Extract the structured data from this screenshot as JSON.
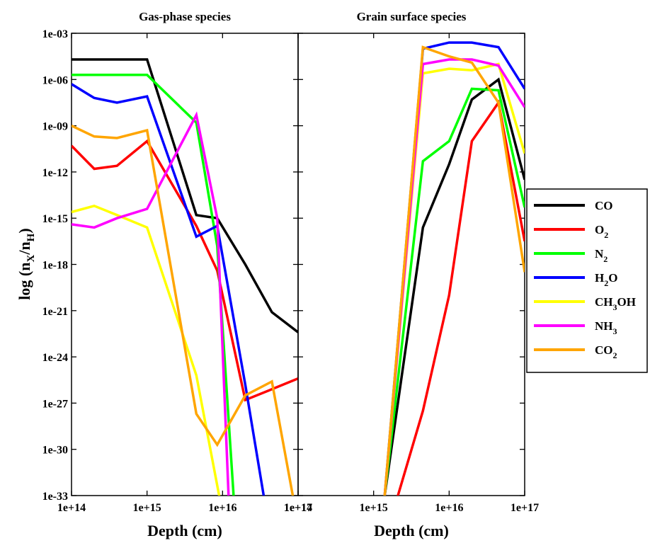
{
  "chart_data": [
    {
      "type": "line",
      "title": "Gas-phase species",
      "xlabel": "Depth (cm)",
      "ylabel_main": "log (n",
      "ylabel_sub_x": "X",
      "ylabel_sep": "/n",
      "ylabel_sub_h": "H",
      "ylabel_close": ")",
      "x_scale": "log",
      "y_scale": "log",
      "xlim": [
        100000000000000.0,
        1e+17
      ],
      "ylim_exp": [
        -33,
        -3
      ],
      "x_ticks": [
        100000000000000.0,
        1000000000000000.0,
        1e+16,
        1e+17
      ],
      "x_tick_labels": [
        "1e+14",
        "1e+15",
        "1e+16",
        "1e+17"
      ],
      "y_ticks_exp": [
        -3,
        -6,
        -9,
        -12,
        -15,
        -18,
        -21,
        -24,
        -27,
        -30,
        -33
      ],
      "y_tick_labels": [
        "1e-03",
        "1e-06",
        "1e-09",
        "1e-12",
        "1e-15",
        "1e-18",
        "1e-21",
        "1e-24",
        "1e-27",
        "1e-30",
        "1e-33"
      ],
      "series": [
        {
          "name": "CO",
          "color": "#000000",
          "x": [
            100000000000000.0,
            200000000000000.0,
            400000000000000.0,
            1000000000000000.0,
            4500000000000000.0,
            8500000000000000.0,
            2e+16,
            4.5e+16,
            1e+17
          ],
          "log10y": [
            -4.7,
            -4.7,
            -4.7,
            -4.7,
            -14.8,
            -15.0,
            -18.0,
            -21.1,
            -22.4
          ]
        },
        {
          "name": "O2",
          "color": "#ff0000",
          "x": [
            100000000000000.0,
            200000000000000.0,
            400000000000000.0,
            1000000000000000.0,
            4500000000000000.0,
            8500000000000000.0,
            2e+16,
            4.5e+16,
            1e+17
          ],
          "log10y": [
            -10.3,
            -11.8,
            -11.6,
            -10.0,
            -15.5,
            -18.4,
            -26.8,
            -26.1,
            -25.4
          ]
        },
        {
          "name": "N2",
          "color": "#00ff00",
          "x": [
            100000000000000.0,
            200000000000000.0,
            400000000000000.0,
            1000000000000000.0,
            4500000000000000.0,
            8500000000000000.0,
            1.4e+16,
            1.5e+16
          ],
          "log10y": [
            -5.7,
            -5.7,
            -5.7,
            -5.7,
            -8.8,
            -16.8,
            -33.0,
            -34.0
          ]
        },
        {
          "name": "H2O",
          "color": "#0000ff",
          "x": [
            100000000000000.0,
            200000000000000.0,
            400000000000000.0,
            1000000000000000.0,
            4500000000000000.0,
            8500000000000000.0,
            2e+16,
            3.5e+16,
            3.7e+16
          ],
          "log10y": [
            -6.3,
            -7.2,
            -7.5,
            -7.1,
            -16.2,
            -15.5,
            -25.8,
            -33.0,
            -34.0
          ]
        },
        {
          "name": "CH3OH",
          "color": "#ffff00",
          "x": [
            100000000000000.0,
            200000000000000.0,
            400000000000000.0,
            1000000000000000.0,
            4500000000000000.0,
            9000000000000000.0,
            9200000000000000.0
          ],
          "log10y": [
            -14.6,
            -14.2,
            -14.8,
            -15.6,
            -25.2,
            -33.0,
            -34.0
          ]
        },
        {
          "name": "NH3",
          "color": "#ff00ff",
          "x": [
            100000000000000.0,
            200000000000000.0,
            400000000000000.0,
            1000000000000000.0,
            4500000000000000.0,
            8500000000000000.0,
            1.2e+16,
            1.25e+16
          ],
          "log10y": [
            -15.4,
            -15.6,
            -15.0,
            -14.4,
            -8.3,
            -15.0,
            -33.0,
            -34.0
          ]
        },
        {
          "name": "CO2",
          "color": "#ffa500",
          "x": [
            100000000000000.0,
            200000000000000.0,
            400000000000000.0,
            1000000000000000.0,
            4500000000000000.0,
            8500000000000000.0,
            2e+16,
            4.5e+16,
            8.5e+16,
            9e+16
          ],
          "log10y": [
            -9.0,
            -9.7,
            -9.8,
            -9.3,
            -27.7,
            -29.7,
            -26.5,
            -25.6,
            -33.0,
            -34.0
          ]
        }
      ]
    },
    {
      "type": "line",
      "title": "Grain surface species",
      "xlabel": "Depth (cm)",
      "x_scale": "log",
      "y_scale": "log",
      "xlim": [
        100000000000000.0,
        1e+17
      ],
      "ylim_exp": [
        -33,
        -3
      ],
      "x_ticks": [
        100000000000000.0,
        1000000000000000.0,
        1e+16,
        1e+17
      ],
      "x_tick_labels": [
        "1e+14",
        "1e+15",
        "1e+16",
        "1e+17"
      ],
      "series": [
        {
          "name": "CO",
          "color": "#000000",
          "x": [
            1100000000000000.0,
            1400000000000000.0,
            4500000000000000.0,
            1e+16,
            2e+16,
            4.5e+16,
            1e+17
          ],
          "log10y": [
            -34.0,
            -33.0,
            -15.6,
            -11.5,
            -7.3,
            -6.0,
            -12.5
          ]
        },
        {
          "name": "O2",
          "color": "#ff0000",
          "x": [
            1950000000000000.0,
            2100000000000000.0,
            4500000000000000.0,
            1e+16,
            2e+16,
            4.5e+16,
            1e+17
          ],
          "log10y": [
            -34.0,
            -33.0,
            -27.5,
            -20.0,
            -10.0,
            -7.5,
            -16.5
          ]
        },
        {
          "name": "N2",
          "color": "#00ff00",
          "x": [
            1100000000000000.0,
            1400000000000000.0,
            4500000000000000.0,
            1e+16,
            2e+16,
            4.5e+16,
            1e+17
          ],
          "log10y": [
            -34.0,
            -33.0,
            -11.3,
            -10.0,
            -6.6,
            -6.7,
            -14.3
          ]
        },
        {
          "name": "H2O",
          "color": "#0000ff",
          "x": [
            1100000000000000.0,
            1400000000000000.0,
            4500000000000000.0,
            1e+16,
            2e+16,
            4.5e+16,
            1e+17
          ],
          "log10y": [
            -34.0,
            -33.0,
            -4.0,
            -3.6,
            -3.6,
            -3.9,
            -6.6
          ]
        },
        {
          "name": "CH3OH",
          "color": "#ffff00",
          "x": [
            1100000000000000.0,
            1400000000000000.0,
            4500000000000000.0,
            1e+16,
            2e+16,
            4.5e+16,
            1e+17
          ],
          "log10y": [
            -34.0,
            -33.0,
            -5.6,
            -5.3,
            -5.4,
            -5.0,
            -10.8
          ]
        },
        {
          "name": "NH3",
          "color": "#ff00ff",
          "x": [
            1100000000000000.0,
            1400000000000000.0,
            4500000000000000.0,
            1e+16,
            2e+16,
            4.5e+16,
            1e+17
          ],
          "log10y": [
            -34.0,
            -33.0,
            -5.0,
            -4.7,
            -4.7,
            -5.1,
            -7.8
          ]
        },
        {
          "name": "CO2",
          "color": "#ffa500",
          "x": [
            1100000000000000.0,
            1400000000000000.0,
            4500000000000000.0,
            1e+16,
            2e+16,
            4.5e+16,
            1e+17
          ],
          "log10y": [
            -34.0,
            -33.0,
            -3.9,
            -4.5,
            -4.9,
            -7.5,
            -18.5
          ]
        }
      ]
    }
  ],
  "legend": {
    "placement": "right",
    "entries": [
      {
        "base": "CO",
        "sub": "",
        "tail": "",
        "color": "#000000"
      },
      {
        "base": "O",
        "sub": "2",
        "tail": "",
        "color": "#ff0000"
      },
      {
        "base": "N",
        "sub": "2",
        "tail": "",
        "color": "#00ff00"
      },
      {
        "base": "H",
        "sub": "2",
        "tail": "O",
        "color": "#0000ff"
      },
      {
        "base": "CH",
        "sub": "3",
        "tail": "OH",
        "color": "#ffff00"
      },
      {
        "base": "NH",
        "sub": "3",
        "tail": "",
        "color": "#ff00ff"
      },
      {
        "base": "CO",
        "sub": "2",
        "tail": "",
        "color": "#ffa500"
      }
    ]
  }
}
